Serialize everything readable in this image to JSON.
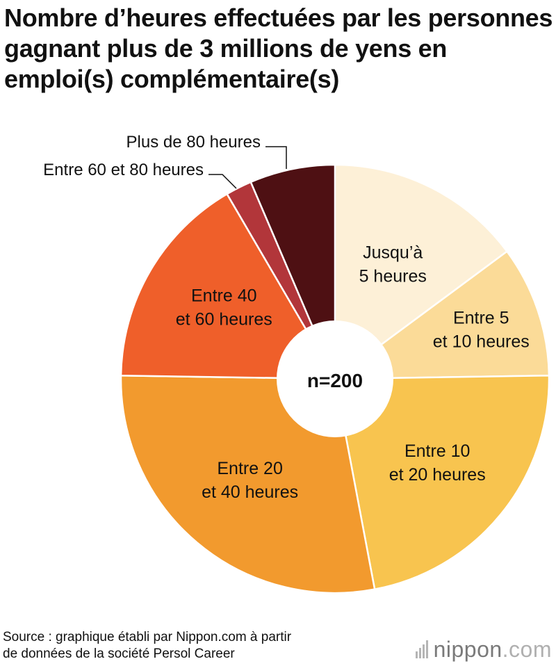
{
  "title": "Nombre d’heures effectuées par les personnes gagnant plus de 3 millions de yens en emploi(s) complémentaire(s)",
  "chart_data": {
    "type": "pie",
    "donut": true,
    "center_label": "n=200",
    "slices": [
      {
        "label": "Jusqu’à 5 heures",
        "label_lines": [
          "Jusqu’à",
          "5 heures"
        ],
        "value": 15.0,
        "color": "#fdf0d7"
      },
      {
        "label": "Entre 5 et 10 heures",
        "label_lines": [
          "Entre 5",
          "et 10 heures"
        ],
        "value": 10.0,
        "color": "#fbdb98"
      },
      {
        "label": "Entre 10 et 20 heures",
        "label_lines": [
          "Entre 10",
          "et 20 heures"
        ],
        "value": 22.5,
        "color": "#f8c44f"
      },
      {
        "label": "Entre 20 et 40 heures",
        "label_lines": [
          "Entre 20",
          "et 40 heures"
        ],
        "value": 28.5,
        "color": "#f29a2e"
      },
      {
        "label": "Entre 40 et 60 heures",
        "label_lines": [
          "Entre 40",
          "et 60 heures"
        ],
        "value": 16.5,
        "color": "#ef5f2a"
      },
      {
        "label": "Entre 60 et 80 heures",
        "label_lines": [
          "Entre 60 et 80 heures"
        ],
        "value": 2.0,
        "color": "#b2363a"
      },
      {
        "label": "Plus de 80 heures",
        "label_lines": [
          "Plus de 80 heures"
        ],
        "value": 6.5,
        "color": "#4e1013"
      }
    ]
  },
  "footer": {
    "source_line1": "Source : graphique établi par Nippon.com à partir",
    "source_line2": "de données de la société Persol Career",
    "brand_name": "nippon",
    "brand_tld": ".com"
  },
  "colors": {
    "text": "#111111",
    "brand_gray": "#7a7a7a"
  }
}
